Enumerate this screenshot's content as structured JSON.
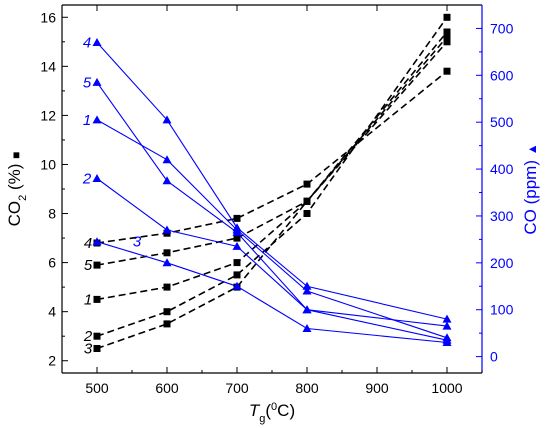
{
  "chart_data": {
    "type": "line",
    "x_axis": {
      "label_main": "T",
      "label_sub": "g",
      "label_rest": "(",
      "label_sup": "0",
      "label_end": "C)",
      "ticks": [
        500,
        600,
        700,
        800,
        900,
        1000
      ],
      "range": [
        450,
        1050
      ]
    },
    "y_left": {
      "label_main": "CO",
      "label_sub": "2",
      "label_rest": " (%)",
      "marker": "■",
      "ticks": [
        2,
        4,
        6,
        8,
        10,
        12,
        14,
        16
      ],
      "range": [
        1.5,
        16.5
      ],
      "color": "#000000"
    },
    "y_right": {
      "label": "CO (ppm)",
      "marker": "▲",
      "ticks": [
        0,
        100,
        200,
        300,
        400,
        500,
        600,
        700
      ],
      "range": [
        -35,
        750
      ],
      "color": "#0000ff"
    },
    "co2_series": [
      {
        "name": "1",
        "x": [
          500,
          600,
          700,
          800,
          1000
        ],
        "y": [
          4.5,
          5.0,
          6.0,
          8.5,
          15.2
        ]
      },
      {
        "name": "2",
        "x": [
          500,
          600,
          700,
          800,
          1000
        ],
        "y": [
          3.0,
          4.0,
          5.5,
          8.0,
          16.0
        ]
      },
      {
        "name": "3",
        "x": [
          500,
          600,
          700,
          800,
          1000
        ],
        "y": [
          2.5,
          3.5,
          5.0,
          8.5,
          15.0
        ]
      },
      {
        "name": "4",
        "x": [
          500,
          600,
          700,
          800,
          1000
        ],
        "y": [
          6.8,
          7.2,
          7.8,
          9.2,
          13.8
        ]
      },
      {
        "name": "5",
        "x": [
          500,
          600,
          700,
          800,
          1000
        ],
        "y": [
          5.9,
          6.4,
          7.0,
          8.5,
          15.4
        ]
      }
    ],
    "co_series": [
      {
        "name": "1",
        "x": [
          500,
          600,
          700,
          800,
          1000
        ],
        "y": [
          505,
          420,
          270,
          140,
          40
        ]
      },
      {
        "name": "2",
        "x": [
          500,
          600,
          700,
          800,
          1000
        ],
        "y": [
          380,
          270,
          235,
          100,
          35
        ]
      },
      {
        "name": "3",
        "x": [
          500,
          600,
          700,
          800,
          1000
        ],
        "y": [
          245,
          200,
          150,
          60,
          30
        ]
      },
      {
        "name": "4",
        "x": [
          500,
          600,
          700,
          800,
          1000
        ],
        "y": [
          670,
          505,
          275,
          150,
          80
        ]
      },
      {
        "name": "5",
        "x": [
          500,
          600,
          700,
          800,
          1000
        ],
        "y": [
          585,
          375,
          265,
          100,
          65
        ]
      }
    ],
    "co2_labels": [
      {
        "text": "4",
        "y": 6.8
      },
      {
        "text": "5",
        "y": 5.9
      },
      {
        "text": "1",
        "y": 4.5
      },
      {
        "text": "2",
        "y": 3.0
      },
      {
        "text": "3",
        "y": 2.5
      }
    ],
    "co_labels": [
      {
        "text": "4",
        "y": 670
      },
      {
        "text": "5",
        "y": 585
      },
      {
        "text": "1",
        "y": 505
      },
      {
        "text": "2",
        "y": 380
      },
      {
        "text": "3",
        "y": 245
      }
    ]
  }
}
